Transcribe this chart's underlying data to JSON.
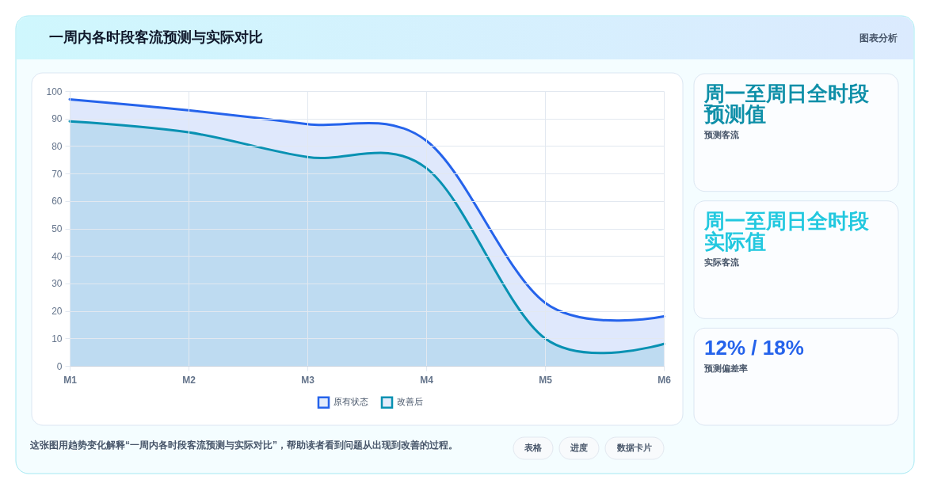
{
  "chart_data": [
    {
      "type": "area",
      "title": "一周内各时段客流预测与实际对比",
      "categories": [
        "M1",
        "M2",
        "M3",
        "M4",
        "M5",
        "M6"
      ],
      "series": [
        {
          "name": "原有状态",
          "color": "#2563eb",
          "values": [
            97,
            93,
            88,
            82,
            23,
            18
          ]
        },
        {
          "name": "改善后",
          "color": "#0891b2",
          "values": [
            89,
            85,
            76,
            72,
            10,
            8
          ]
        }
      ],
      "ylim": [
        0,
        100
      ],
      "yticks": [
        0,
        10,
        20,
        30,
        40,
        50,
        60,
        70,
        80,
        90,
        100
      ],
      "grid": true,
      "legend": "bottom",
      "annotations": [
        "图表分析",
        "这张图用趋势变化解释“一周内各时段客流预测与实际对比”，帮助读者看到问题从出现到改善的过程。",
        "表格",
        "进度",
        "数据卡片"
      ]
    },
    {
      "type": "other",
      "title": "周一至周日全时段预测值",
      "subtitle": "预测客流"
    },
    {
      "type": "other",
      "title": "周一至周日全时段实际值",
      "subtitle": "实际客流"
    },
    {
      "type": "other",
      "title": "12% / 18%",
      "subtitle": "预测偏差率"
    }
  ]
}
